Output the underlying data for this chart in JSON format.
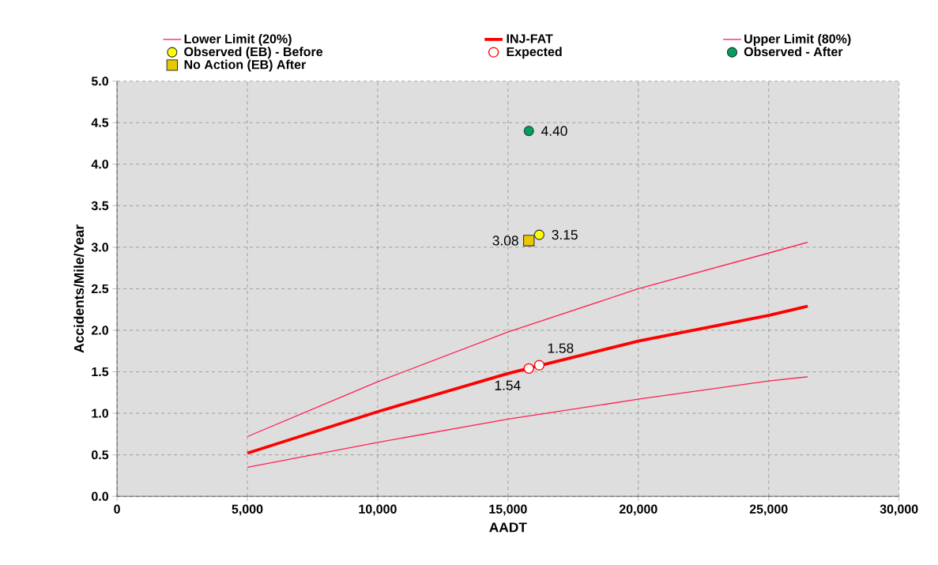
{
  "chart_data": {
    "type": "line",
    "xlabel": "AADT",
    "ylabel": "Accidents/Mile/Year",
    "xlim": [
      0,
      30000
    ],
    "ylim": [
      0,
      5
    ],
    "xticks": [
      {
        "value": 0,
        "label": "0"
      },
      {
        "value": 5000,
        "label": "5,000"
      },
      {
        "value": 10000,
        "label": "10,000"
      },
      {
        "value": 15000,
        "label": "15,000"
      },
      {
        "value": 20000,
        "label": "20,000"
      },
      {
        "value": 25000,
        "label": "25,000"
      },
      {
        "value": 30000,
        "label": "30,000"
      }
    ],
    "yticks": [
      {
        "value": 0,
        "label": "0.0"
      },
      {
        "value": 0.5,
        "label": "0.5"
      },
      {
        "value": 1,
        "label": "1.0"
      },
      {
        "value": 1.5,
        "label": "1.5"
      },
      {
        "value": 2,
        "label": "2.0"
      },
      {
        "value": 2.5,
        "label": "2.5"
      },
      {
        "value": 3,
        "label": "3.0"
      },
      {
        "value": 3.5,
        "label": "3.5"
      },
      {
        "value": 4,
        "label": "4.0"
      },
      {
        "value": 4.5,
        "label": "4.5"
      },
      {
        "value": 5,
        "label": "5.0"
      }
    ],
    "grid": true,
    "legend": "top",
    "line_style": "solid",
    "series": [
      {
        "name": "Lower Limit (20%)",
        "color": "#ff2255",
        "x": [
          5000,
          10000,
          15000,
          20000,
          25000,
          26500
        ],
        "values": [
          0.35,
          0.65,
          0.93,
          1.17,
          1.39,
          1.44
        ]
      },
      {
        "name": "INJ-FAT",
        "color": "#ff0000",
        "x": [
          5000,
          10000,
          15000,
          20000,
          25000,
          26500
        ],
        "values": [
          0.52,
          1.02,
          1.48,
          1.87,
          2.18,
          2.29
        ]
      },
      {
        "name": "Upper Limit (80%)",
        "color": "#ff2255",
        "x": [
          5000,
          10000,
          15000,
          20000,
          25000,
          26500
        ],
        "values": [
          0.72,
          1.38,
          1.98,
          2.5,
          2.93,
          3.06
        ]
      },
      {
        "name": "Observed (EB) - Before",
        "type": "scatter",
        "marker": "circle",
        "color": "#ffff00",
        "x": [
          16200
        ],
        "values": [
          3.15
        ],
        "value_labels": [
          "3.15"
        ]
      },
      {
        "name": "Expected",
        "type": "scatter",
        "marker": "circle",
        "color": "#ff0000",
        "x": [
          15800,
          16200
        ],
        "values": [
          1.54,
          1.58
        ],
        "value_labels": [
          "1.54",
          "1.58"
        ]
      },
      {
        "name": "Observed - After",
        "type": "scatter",
        "marker": "circle",
        "color": "#00a060",
        "x": [
          15800
        ],
        "values": [
          4.4
        ],
        "value_labels": [
          "4.40"
        ]
      },
      {
        "name": "No Action (EB) After",
        "type": "scatter",
        "marker": "square",
        "color": "#e8c800",
        "x": [
          15800
        ],
        "values": [
          3.08
        ],
        "value_labels": [
          "3.08"
        ]
      }
    ]
  }
}
